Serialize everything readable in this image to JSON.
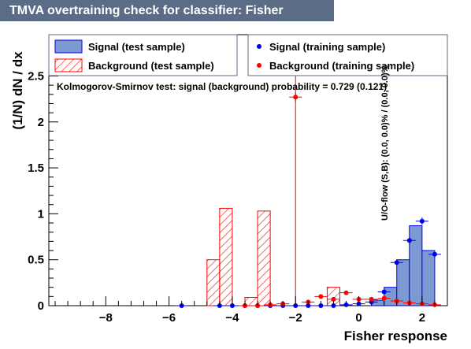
{
  "title": "TMVA overtraining check for classifier: Fisher",
  "ylabel": "(1/N) dN / dx",
  "side_label": "U/O-flow (S,B): (0.0, 0.0)% / (0.0, 0.0)%",
  "ks_text": "Kolmogorov-Smirnov test: signal (background) probability = 0.729 (0.121)",
  "legend": {
    "signal_test": "Signal (test sample)",
    "background_test": "Background (test sample)",
    "signal_train": "Signal (training sample)",
    "background_train": "Background (training sample)"
  },
  "colors": {
    "title_bg": "#5b6c87",
    "signal_fill": "#7d99d1",
    "signal_line": "#0000ee",
    "background": "#ff0000"
  },
  "chart_data": {
    "type": "bar",
    "title": "TMVA overtraining check for classifier: Fisher",
    "xlabel": "Fisher response",
    "ylabel": "(1/N) dN / dx",
    "xlim": [
      -9.8,
      2.8
    ],
    "ylim": [
      0,
      2.95
    ],
    "xticks": [
      -8,
      -6,
      -4,
      -2,
      0,
      2
    ],
    "yticks": [
      0,
      0.5,
      1,
      1.5,
      2,
      2.5
    ],
    "bin_width": 0.4,
    "series": [
      {
        "name": "Signal (test sample)",
        "kind": "hist-filled",
        "x": [
          0.6,
          1.0,
          1.4,
          1.8,
          2.2
        ],
        "values": [
          0.06,
          0.2,
          0.5,
          0.87,
          0.6
        ]
      },
      {
        "name": "Background (test sample)",
        "kind": "hist-hatched",
        "x": [
          -4.6,
          -4.2,
          -3.4,
          -3.0,
          -0.8
        ],
        "values": [
          0.5,
          1.06,
          0.09,
          1.03,
          0.2
        ]
      },
      {
        "name": "Signal (training sample)",
        "kind": "points",
        "x": [
          -5.6,
          -4.4,
          -4.0,
          -3.6,
          -3.2,
          -2.8,
          -2.4,
          -2.0,
          -1.6,
          -1.2,
          -0.8,
          -0.4,
          0.0,
          0.4,
          0.8,
          1.2,
          1.6,
          2.0,
          2.4
        ],
        "y": [
          0.0,
          0.0,
          0.0,
          0.0,
          0.0,
          0.0,
          0.0,
          0.0,
          0.0,
          0.0,
          0.0,
          0.01,
          0.02,
          0.04,
          0.15,
          0.47,
          0.71,
          0.92,
          0.56
        ],
        "yerr": [
          0,
          0,
          0,
          0,
          0,
          0,
          0,
          0,
          0,
          0,
          0,
          0,
          0,
          0,
          0.02,
          0.03,
          0.04,
          0.04,
          0.04
        ]
      },
      {
        "name": "Background (training sample)",
        "kind": "points",
        "x": [
          -3.6,
          -3.2,
          -2.8,
          -2.4,
          -2.0,
          -1.6,
          -1.2,
          -0.8,
          -0.4,
          0.0,
          0.4,
          0.8,
          1.2,
          1.6,
          2.0,
          2.4
        ],
        "y": [
          0.0,
          0.0,
          0.01,
          0.02,
          2.27,
          0.04,
          0.1,
          0.07,
          0.14,
          0.07,
          0.07,
          0.08,
          0.05,
          0.03,
          0.02,
          0.01
        ],
        "yerr": [
          0,
          0,
          0,
          0,
          0.05,
          0.02,
          0.02,
          0.02,
          0.02,
          0.02,
          0.02,
          0.02,
          0.02,
          0.01,
          0.01,
          0.01
        ]
      }
    ],
    "vline_x": -2.0,
    "grid": false,
    "legend_position": "top"
  }
}
